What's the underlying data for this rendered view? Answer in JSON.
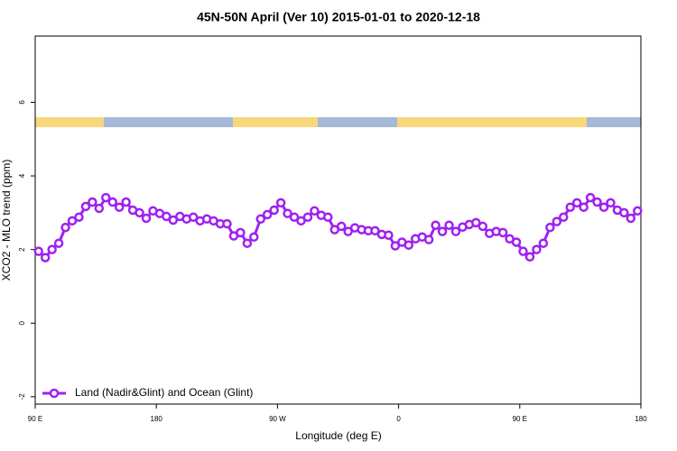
{
  "chart_data": {
    "type": "line",
    "title": "45N-50N April (Ver 10)   2015-01-01 to 2020-12-18",
    "x_label": "Longitude (deg E)",
    "y_label": "XCO2 - MLO trend (ppm)",
    "xlim": [
      90,
      540
    ],
    "xticks": [
      {
        "value": 90,
        "label": "90 E"
      },
      180,
      {
        "value": 270,
        "label": "90 W"
      },
      {
        "value": 360,
        "label": "0"
      },
      {
        "value": 450,
        "label": "90 E"
      },
      {
        "value": 540,
        "label": "180"
      }
    ],
    "ylim": [
      -2.2,
      7.8
    ],
    "yticks": [
      -2,
      0,
      2,
      4,
      6
    ],
    "legend": "bottom-left",
    "x": [
      92.5,
      97.5,
      102.5,
      107.5,
      112.5,
      117.5,
      122.5,
      127.5,
      132.5,
      137.5,
      142.5,
      147.5,
      152.5,
      157.5,
      162.5,
      167.5,
      172.5,
      177.5,
      182.5,
      187.5,
      192.5,
      197.5,
      202.5,
      207.5,
      212.5,
      217.5,
      222.5,
      227.5,
      232.5,
      237.5,
      242.5,
      247.5,
      252.5,
      257.5,
      262.5,
      267.5,
      272.5,
      277.5,
      282.5,
      287.5,
      292.5,
      297.5,
      302.5,
      307.5,
      312.5,
      317.5,
      322.5,
      327.5,
      332.5,
      337.5,
      342.5,
      347.5,
      352.5,
      357.5,
      362.5,
      367.5,
      372.5,
      377.5,
      382.5,
      387.5,
      392.5,
      397.5,
      402.5,
      407.5,
      412.5,
      417.5,
      422.5,
      427.5,
      432.5,
      437.5,
      442.5,
      447.5,
      452.5,
      457.5,
      462.5,
      467.5,
      472.5,
      477.5,
      482.5,
      487.5,
      492.5,
      497.5,
      502.5,
      507.5,
      512.5,
      517.5,
      522.5,
      527.5,
      532.5,
      537.5
    ],
    "series": [
      {
        "name": "Land (Nadir&Glint) and Ocean (Glint)",
        "color": "#a020f0",
        "values": [
          1.95,
          1.78,
          2.0,
          2.17,
          2.6,
          2.78,
          2.88,
          3.17,
          3.29,
          3.12,
          3.41,
          3.29,
          3.15,
          3.29,
          3.07,
          3.0,
          2.85,
          3.05,
          2.98,
          2.9,
          2.8,
          2.9,
          2.83,
          2.88,
          2.78,
          2.83,
          2.78,
          2.7,
          2.7,
          2.37,
          2.46,
          2.17,
          2.34,
          2.83,
          2.95,
          3.07,
          3.27,
          2.98,
          2.88,
          2.78,
          2.88,
          3.05,
          2.93,
          2.88,
          2.54,
          2.63,
          2.49,
          2.59,
          2.54,
          2.51,
          2.51,
          2.41,
          2.39,
          2.1,
          2.2,
          2.12,
          2.29,
          2.34,
          2.27,
          2.66,
          2.49,
          2.66,
          2.49,
          2.61,
          2.68,
          2.73,
          2.63,
          2.44,
          2.49,
          2.46,
          2.29,
          2.2,
          1.95,
          1.8,
          2.0,
          2.17,
          2.6,
          2.76,
          2.88,
          3.15,
          3.27,
          3.15,
          3.41,
          3.29,
          3.15,
          3.27,
          3.07,
          3.0,
          2.85,
          3.05
        ]
      }
    ]
  }
}
